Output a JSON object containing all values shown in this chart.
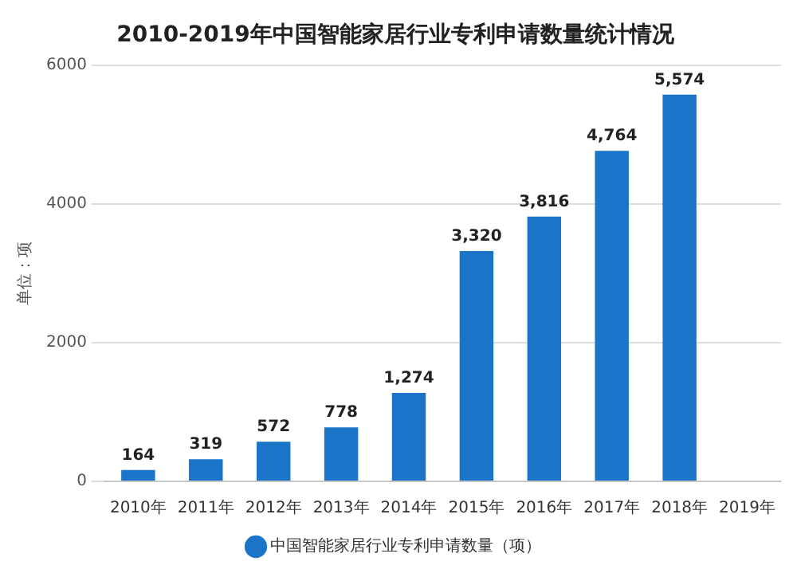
{
  "chart_data": {
    "type": "bar",
    "title": "2010-2019年中国智能家居行业专利申请数量统计情况",
    "ylabel": "单位：项",
    "categories": [
      "2010年",
      "2011年",
      "2012年",
      "2013年",
      "2014年",
      "2015年",
      "2016年",
      "2017年",
      "2018年",
      "2019年"
    ],
    "series": [
      {
        "name": "中国智能家居行业专利申请数量（项）",
        "color": "#1a75c9",
        "values": [
          164,
          319,
          572,
          778,
          1274,
          3320,
          3816,
          4764,
          5574,
          null
        ],
        "value_labels": [
          "164",
          "319",
          "572",
          "778",
          "1,274",
          "3,320",
          "3,816",
          "4,764",
          "5,574",
          null
        ]
      }
    ],
    "ylim": [
      0,
      6000
    ],
    "yticks": [
      0,
      2000,
      4000,
      6000
    ],
    "grid": "y",
    "legend": "bottom"
  }
}
